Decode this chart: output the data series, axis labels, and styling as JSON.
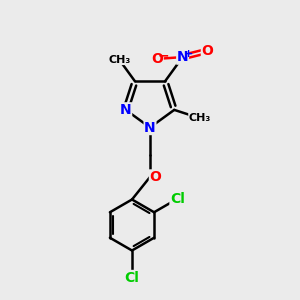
{
  "bg_color": "#ebebeb",
  "atom_colors": {
    "C": "#000000",
    "N": "#0000ff",
    "O": "#ff0000",
    "Cl": "#00cc00",
    "H": "#000000"
  },
  "bond_color": "#000000",
  "bond_width": 1.8,
  "figsize": [
    3.0,
    3.0
  ],
  "dpi": 100,
  "font_size": 10
}
